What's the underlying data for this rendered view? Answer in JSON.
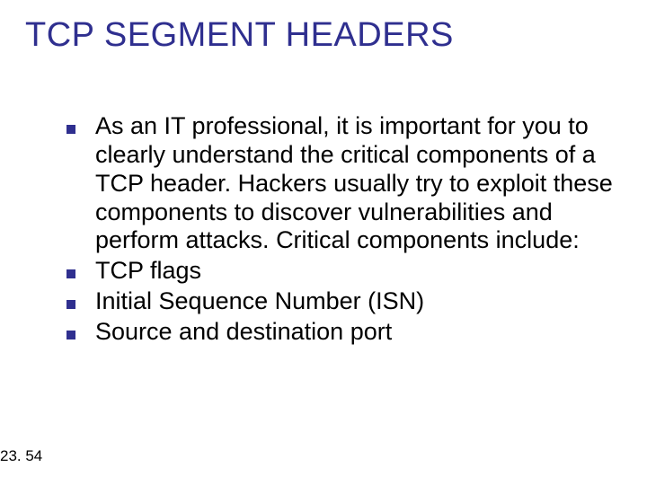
{
  "slide": {
    "title": "TCP SEGMENT HEADERS",
    "title_color": "#2f2f8f",
    "title_fontsize": 38,
    "bullets": [
      "As an IT professional, it is important for you to clearly understand the critical components of a TCP header. Hackers usually try to exploit these components to discover vulnerabilities and perform attacks. Critical components include:",
      "TCP flags",
      "Initial Sequence Number (ISN)",
      "Source and destination port"
    ],
    "bullet_marker": {
      "color": "#2f2f8f",
      "size": 10
    },
    "bullet_text_color": "#000000",
    "bullet_fontsize": 27,
    "page_number": "23. 54",
    "page_number_color": "#000000",
    "page_number_fontsize": 17,
    "background_color": "#ffffff"
  }
}
